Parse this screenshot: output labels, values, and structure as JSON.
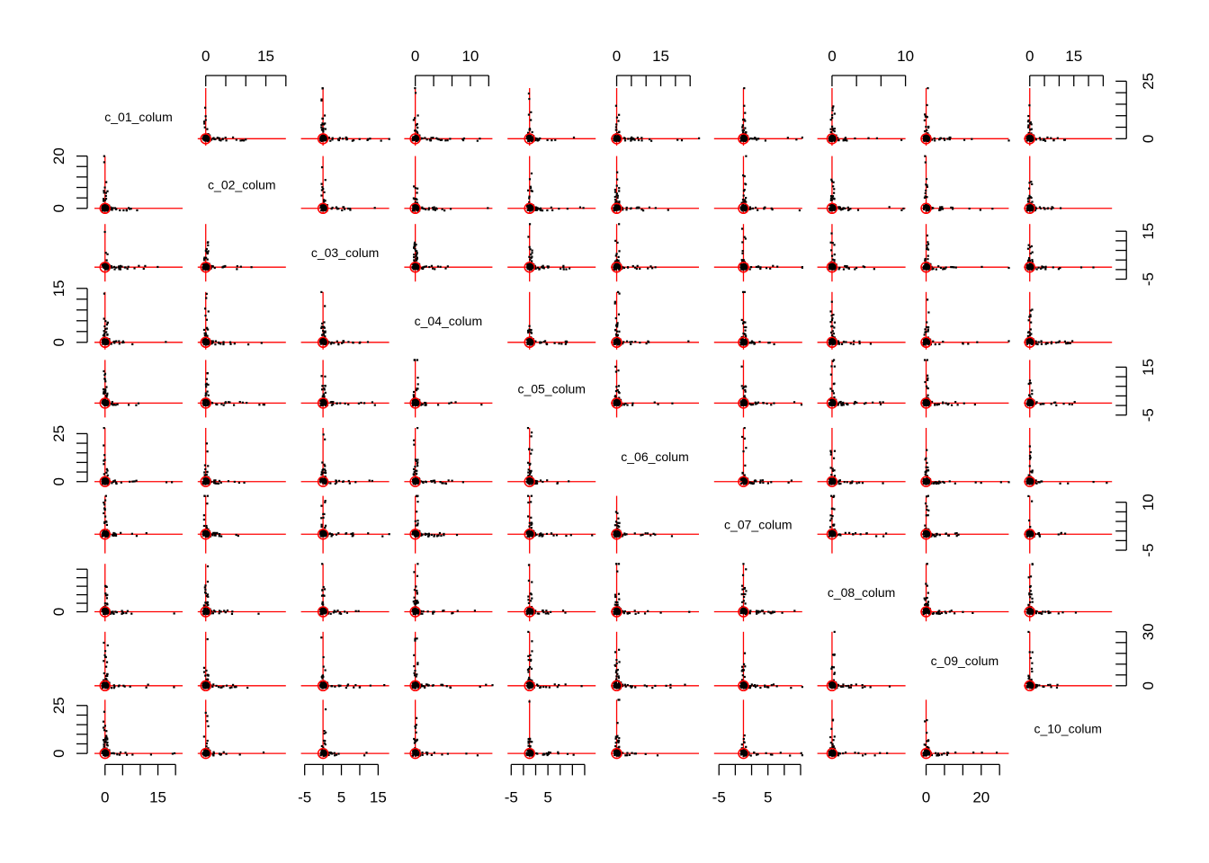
{
  "chart_data": {
    "type": "scatter-matrix",
    "variables": [
      "c_01_colum",
      "c_02_colum",
      "c_03_colum",
      "c_04_colum",
      "c_05_colum",
      "c_06_colum",
      "c_07_colum",
      "c_08_colum",
      "c_09_colum",
      "c_10_colum"
    ],
    "colors": {
      "points": "#000000",
      "reference_lines": "#ff0000",
      "axis": "#000000",
      "background": "#ffffff"
    },
    "axes": {
      "top": [
        {
          "column": 2,
          "ticks": [
            0,
            15
          ]
        },
        {
          "column": 4,
          "ticks": [
            0,
            10
          ]
        },
        {
          "column": 6,
          "ticks": [
            0,
            15
          ]
        },
        {
          "column": 8,
          "ticks": [
            0,
            10
          ]
        },
        {
          "column": 10,
          "ticks": [
            0,
            15
          ]
        }
      ],
      "bottom": [
        {
          "column": 1,
          "ticks": [
            0,
            15
          ]
        },
        {
          "column": 3,
          "ticks": [
            -5,
            5,
            15
          ]
        },
        {
          "column": 5,
          "ticks": [
            -5,
            5
          ]
        },
        {
          "column": 7,
          "ticks": [
            -5,
            5
          ]
        },
        {
          "column": 9,
          "ticks": [
            0,
            20
          ]
        }
      ],
      "left": [
        {
          "row": 2,
          "ticks": [
            0,
            20
          ]
        },
        {
          "row": 4,
          "ticks": [
            0,
            15
          ]
        },
        {
          "row": 6,
          "ticks": [
            0,
            25
          ]
        },
        {
          "row": 8,
          "ticks": [
            0
          ]
        },
        {
          "row": 10,
          "ticks": [
            0,
            25
          ]
        }
      ],
      "right": [
        {
          "row": 1,
          "ticks": [
            0,
            25
          ]
        },
        {
          "row": 3,
          "ticks": [
            -5,
            15
          ]
        },
        {
          "row": 5,
          "ticks": [
            -5,
            15
          ]
        },
        {
          "row": 7,
          "ticks": [
            -5,
            10
          ]
        },
        {
          "row": 9,
          "ticks": [
            0,
            30
          ]
        }
      ]
    }
  }
}
